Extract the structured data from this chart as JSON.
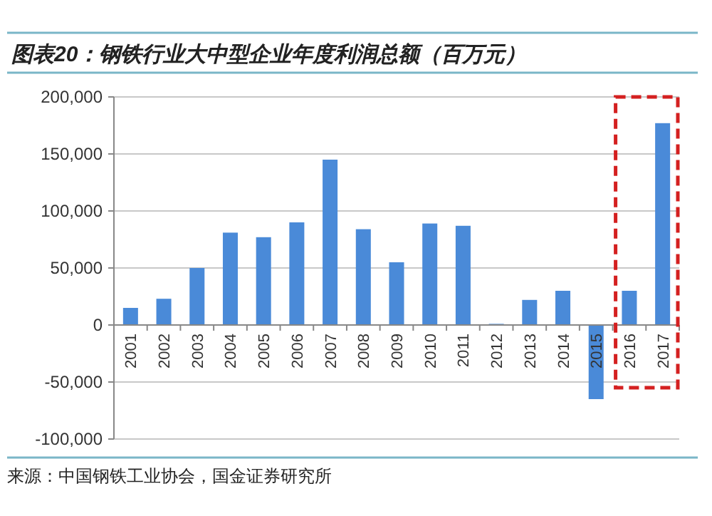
{
  "chart_data": {
    "type": "bar",
    "title": "图表20：钢铁行业大中型企业年度利润总额（百万元）",
    "categories": [
      "2001",
      "2002",
      "2003",
      "2004",
      "2005",
      "2006",
      "2007",
      "2008",
      "2009",
      "2010",
      "2011",
      "2012",
      "2013",
      "2014",
      "2015",
      "2016",
      "2017"
    ],
    "values": [
      15000,
      23000,
      50000,
      81000,
      77000,
      90000,
      145000,
      84000,
      55000,
      89000,
      87000,
      1000,
      22000,
      30000,
      -65000,
      30000,
      177000
    ],
    "color": "#4a8ad8",
    "ylim": [
      -100000,
      200000
    ],
    "yticks": [
      {
        "value": -100000,
        "label": "-100,000"
      },
      {
        "value": -50000,
        "label": "-50,000"
      },
      0,
      {
        "value": 50000,
        "label": "50,000"
      },
      {
        "value": 100000,
        "label": "100,000"
      },
      {
        "value": 150000,
        "label": "150,000"
      },
      {
        "value": 200000,
        "label": "200,000"
      }
    ],
    "grid": "y",
    "annotations": [
      "来源：中国钢铁工业协会，国金证券研究所"
    ]
  }
}
